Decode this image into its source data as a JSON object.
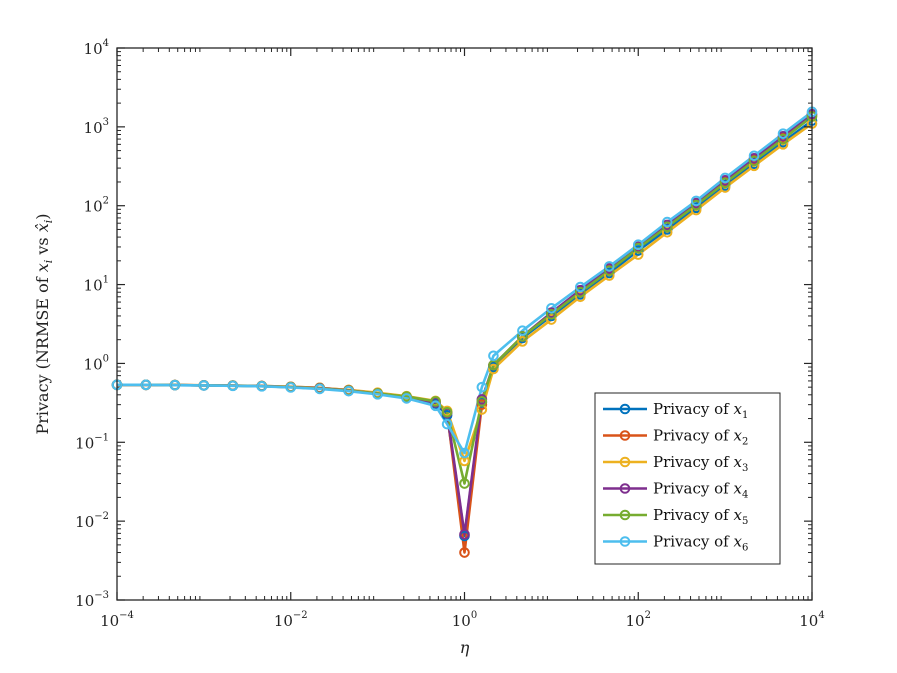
{
  "chart_data": {
    "type": "line",
    "title": "",
    "xlabel": "η",
    "ylabel_parts": [
      "Privacy (NRMSE of ",
      "x",
      "i",
      " vs ",
      "x̂",
      "i",
      ")"
    ],
    "xscale": "log",
    "yscale": "log",
    "xlim": [
      0.0001,
      10000
    ],
    "ylim": [
      0.001,
      10000
    ],
    "x_ticks": [
      {
        "value": 0.0001,
        "base": "10",
        "exp": "−4"
      },
      {
        "value": 0.01,
        "base": "10",
        "exp": "−2"
      },
      {
        "value": 1,
        "base": "10",
        "exp": "0"
      },
      {
        "value": 100,
        "base": "10",
        "exp": "2"
      },
      {
        "value": 10000,
        "base": "10",
        "exp": "4"
      }
    ],
    "y_ticks": [
      {
        "value": 0.001,
        "base": "10",
        "exp": "−3"
      },
      {
        "value": 0.01,
        "base": "10",
        "exp": "−2"
      },
      {
        "value": 0.1,
        "base": "10",
        "exp": "−1"
      },
      {
        "value": 1,
        "base": "10",
        "exp": "0"
      },
      {
        "value": 10,
        "base": "10",
        "exp": "1"
      },
      {
        "value": 100,
        "base": "10",
        "exp": "2"
      },
      {
        "value": 1000,
        "base": "10",
        "exp": "3"
      },
      {
        "value": 10000,
        "base": "10",
        "exp": "4"
      }
    ],
    "legend_position": "bottom-right",
    "x_exponents": [
      -4,
      -3.6667,
      -3.3333,
      -3,
      -2.6667,
      -2.3333,
      -2,
      -1.6667,
      -1.3333,
      -1,
      -0.6667,
      -0.3333,
      -0.2,
      0,
      0.2,
      0.3333,
      0.6667,
      1,
      1.3333,
      1.6667,
      2,
      2.3333,
      2.6667,
      3,
      3.3333,
      3.6667,
      4
    ],
    "series": [
      {
        "name": "Privacy of x1",
        "legend_main": "Privacy of ",
        "legend_var": "x",
        "legend_sub": "1",
        "color": "#0072BD",
        "values": [
          0.535,
          0.535,
          0.53,
          0.527,
          0.522,
          0.515,
          0.5,
          0.48,
          0.45,
          0.41,
          0.37,
          0.31,
          0.22,
          0.0065,
          0.32,
          0.9,
          2.1,
          4.0,
          7.5,
          14,
          27,
          50,
          94,
          180,
          340,
          640,
          1200
        ]
      },
      {
        "name": "Privacy of x2",
        "legend_main": "Privacy of ",
        "legend_var": "x",
        "legend_sub": "2",
        "color": "#D95319",
        "values": [
          0.535,
          0.535,
          0.532,
          0.528,
          0.524,
          0.518,
          0.505,
          0.49,
          0.46,
          0.42,
          0.38,
          0.33,
          0.24,
          0.004,
          0.3,
          0.95,
          2.2,
          4.3,
          8.3,
          15.5,
          30,
          55,
          105,
          200,
          380,
          730,
          1400
        ]
      },
      {
        "name": "Privacy of x3",
        "legend_main": "Privacy of ",
        "legend_var": "x",
        "legend_sub": "3",
        "color": "#EDB120",
        "values": [
          0.535,
          0.535,
          0.532,
          0.528,
          0.524,
          0.518,
          0.505,
          0.49,
          0.462,
          0.425,
          0.385,
          0.335,
          0.25,
          0.058,
          0.26,
          0.85,
          1.9,
          3.6,
          7.0,
          13,
          24,
          46,
          88,
          170,
          320,
          600,
          1100
        ]
      },
      {
        "name": "Privacy of x4",
        "legend_main": "Privacy of ",
        "legend_var": "x",
        "legend_sub": "4",
        "color": "#7E2F8E",
        "values": [
          0.535,
          0.535,
          0.531,
          0.527,
          0.523,
          0.516,
          0.502,
          0.485,
          0.455,
          0.415,
          0.375,
          0.32,
          0.235,
          0.0068,
          0.35,
          0.95,
          2.2,
          4.4,
          8.5,
          16,
          30,
          57,
          108,
          210,
          400,
          760,
          1450
        ]
      },
      {
        "name": "Privacy of x5",
        "legend_main": "Privacy of ",
        "legend_var": "x",
        "legend_sub": "5",
        "color": "#77AC30",
        "values": [
          0.535,
          0.535,
          0.531,
          0.527,
          0.522,
          0.515,
          0.5,
          0.48,
          0.452,
          0.415,
          0.38,
          0.33,
          0.24,
          0.03,
          0.33,
          0.95,
          2.2,
          4.2,
          8.0,
          15,
          29,
          54,
          102,
          195,
          370,
          700,
          1350
        ]
      },
      {
        "name": "Privacy of x6",
        "legend_main": "Privacy of ",
        "legend_var": "x",
        "legend_sub": "6",
        "color": "#4DBEEE",
        "values": [
          0.535,
          0.535,
          0.53,
          0.526,
          0.52,
          0.512,
          0.495,
          0.475,
          0.445,
          0.405,
          0.36,
          0.29,
          0.17,
          0.073,
          0.5,
          1.25,
          2.6,
          5.0,
          9.3,
          17,
          32,
          62,
          115,
          225,
          430,
          820,
          1550
        ]
      }
    ]
  }
}
